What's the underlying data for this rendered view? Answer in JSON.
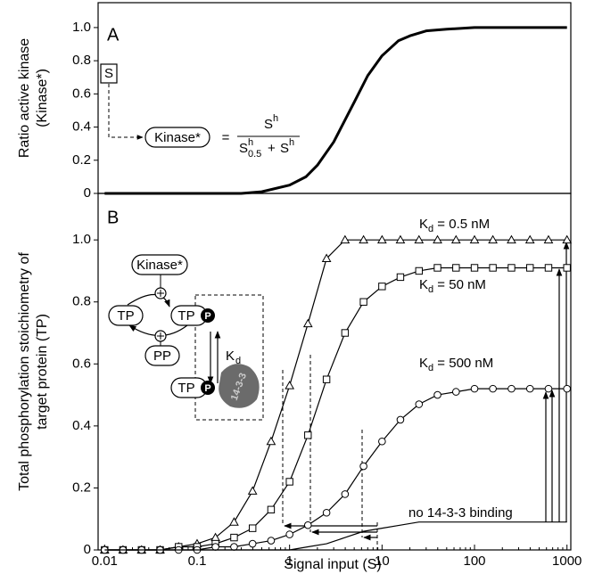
{
  "chart_data": [
    {
      "type": "line",
      "panel": "A",
      "ylabel": [
        "Ratio active kinase",
        "(Kinase*)"
      ],
      "xscale": "log",
      "xlim": [
        0.0085,
        1100
      ],
      "ylim": [
        0,
        1.15
      ],
      "yticks": [
        0,
        0.2,
        0.4,
        0.6,
        0.8,
        {
          "value": 1,
          "label": "1.0"
        }
      ],
      "x": [
        0.01,
        0.03,
        0.1,
        0.3,
        0.5,
        1,
        1.5,
        2,
        3,
        5,
        7,
        10,
        15,
        20,
        30,
        50,
        100,
        300,
        1000
      ],
      "values": [
        0,
        0,
        0,
        0,
        0.01,
        0.05,
        0.1,
        0.17,
        0.31,
        0.55,
        0.71,
        0.83,
        0.92,
        0.95,
        0.98,
        0.99,
        1,
        1,
        1
      ],
      "color": "#000000",
      "annotations": {
        "signal": "S",
        "kinase": "Kinase*",
        "equals": "=",
        "num": "S",
        "num_sup": "h",
        "den1": "S",
        "den1_sup": "h",
        "den1_sub": "0.5",
        "plus": "+",
        "den2": "S",
        "den2_sup": "h"
      }
    },
    {
      "type": "line",
      "panel": "B",
      "ylabel": [
        "Total phosphorylation stoichiometry of",
        "target protein (TP)"
      ],
      "xlabel": "Signal input (S)",
      "xscale": "log",
      "xlim": [
        0.0085,
        1100
      ],
      "xticks": [
        0.01,
        0.1,
        1,
        10,
        100,
        1000
      ],
      "ylim": [
        0,
        1.15
      ],
      "yticks": [
        0,
        0.2,
        0.4,
        0.6,
        0.8,
        {
          "value": 1,
          "label": "1.0"
        }
      ],
      "x": [
        0.01,
        0.0158,
        0.0251,
        0.0398,
        0.0631,
        0.1,
        0.158,
        0.251,
        0.398,
        0.631,
        1,
        1.58,
        2.51,
        3.98,
        6.31,
        10,
        15.8,
        25.1,
        39.8,
        63.1,
        100,
        158,
        251,
        398,
        631,
        1000
      ],
      "series": [
        {
          "name": "K",
          "name_sub": "d",
          "name_rest": " = 0.5 nM",
          "marker": "triangle",
          "color": "#000000",
          "values": [
            0,
            0,
            0,
            0,
            0.01,
            0.02,
            0.04,
            0.09,
            0.19,
            0.35,
            0.53,
            0.73,
            0.94,
            1,
            1,
            1,
            1,
            1,
            1,
            1,
            1,
            1,
            1,
            1,
            1,
            1
          ]
        },
        {
          "name": "K",
          "name_sub": "d",
          "name_rest": " = 50 nM",
          "marker": "square",
          "color": "#000000",
          "values": [
            0,
            0,
            0,
            0,
            0.01,
            0.01,
            0.02,
            0.04,
            0.07,
            0.13,
            0.22,
            0.37,
            0.55,
            0.7,
            0.8,
            0.85,
            0.88,
            0.9,
            0.91,
            0.91,
            0.91,
            0.91,
            0.91,
            0.91,
            0.91,
            0.91
          ]
        },
        {
          "name": "K",
          "name_sub": "d",
          "name_rest": " = 500 nM",
          "marker": "circle",
          "color": "#000000",
          "values": [
            0,
            0,
            0,
            0,
            0,
            0,
            0.01,
            0.01,
            0.02,
            0.03,
            0.05,
            0.08,
            0.12,
            0.18,
            0.27,
            0.35,
            0.42,
            0.47,
            0.5,
            0.51,
            0.52,
            0.52,
            0.52,
            0.52,
            0.52,
            0.52
          ]
        },
        {
          "name": "no 14-3-3 binding",
          "color": "#000000",
          "values": [
            0,
            0,
            0,
            0,
            0,
            0,
            0,
            0,
            0,
            0,
            0,
            0.01,
            0.02,
            0.04,
            0.06,
            0.07,
            0.08,
            0.09,
            0.09,
            0.09,
            0.09,
            0.09,
            0.09,
            0.09,
            0.09,
            0.09
          ]
        }
      ],
      "annotations": {
        "kinase": "Kinase*",
        "tp1": "TP",
        "tp2": "TP",
        "p2": "P",
        "pp": "PP",
        "kd": "K",
        "kd_sub": "d",
        "tp3": "TP",
        "p3": "P",
        "protein": "14-3-3"
      }
    }
  ]
}
